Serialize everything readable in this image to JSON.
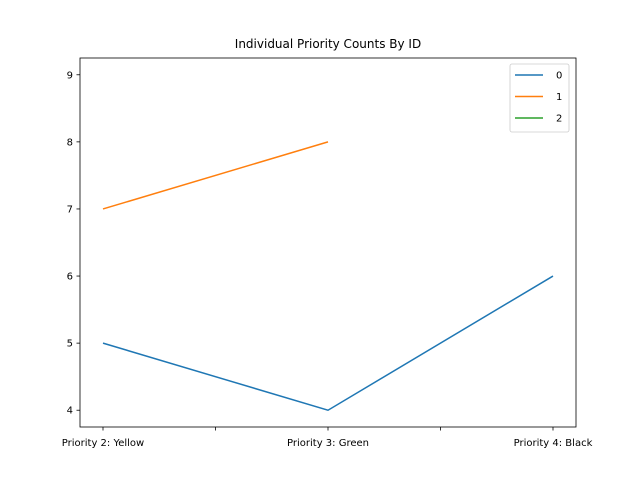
{
  "chart_data": {
    "type": "line",
    "title": "Individual Priority Counts By ID",
    "xlabel": "",
    "ylabel": "",
    "categories": [
      "Priority 2: Yellow",
      "Priority 3: Green",
      "Priority 4: Black"
    ],
    "ylim": [
      3.75,
      9.25
    ],
    "yticks": [
      4,
      5,
      6,
      7,
      8,
      9
    ],
    "grid": false,
    "legend_position": "top-right",
    "series": [
      {
        "name": "0",
        "color": "#1f77b4",
        "values": [
          5,
          4,
          6
        ]
      },
      {
        "name": "1",
        "color": "#ff7f0e",
        "values": [
          7,
          8,
          null
        ]
      },
      {
        "name": "2",
        "color": "#2ca02c",
        "values": [
          null,
          null,
          null
        ]
      }
    ]
  }
}
